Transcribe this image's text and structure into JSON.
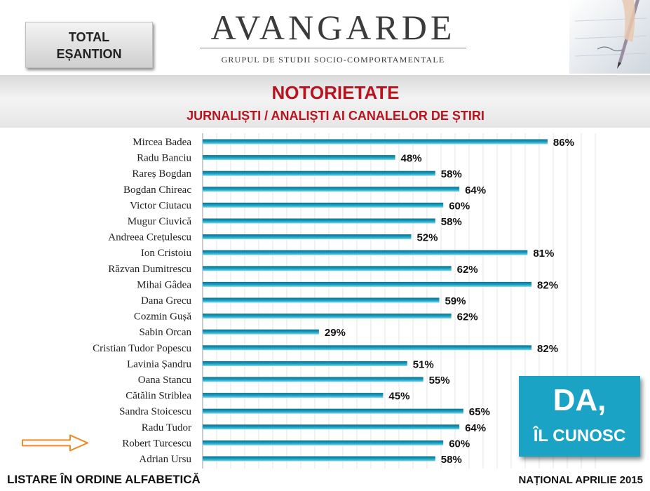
{
  "badge": {
    "line1": "TOTAL",
    "line2": "EȘANTION"
  },
  "logo": {
    "word": "AVANGARDE",
    "tagline": "GRUPUL DE STUDII SOCIO-COMPORTAMENTALE"
  },
  "heading": {
    "title": "NOTORIETATE",
    "subtitle": "JURNALIȘTI / ANALIȘTI AI CANALELOR DE ȘTIRI"
  },
  "callout": {
    "line1": "DA,",
    "line2": "ÎL CUNOSC"
  },
  "footer": {
    "left": "LISTARE ÎN ORDINE ALFABETICĂ",
    "right": "NAȚIONAL APRILIE 2015"
  },
  "colors": {
    "bar": "#1aa3c5",
    "bar_dark": "#0d6f8c",
    "title": "#b8141f",
    "arrow": "#f08a24"
  },
  "highlight_icon": "orange-arrow-icon",
  "chart_data": {
    "type": "bar",
    "orientation": "horizontal",
    "title": "NOTORIETATE",
    "subtitle": "JURNALIȘTI / ANALIȘTI AI CANALELOR DE ȘTIRI",
    "categories": [
      "Mircea Badea",
      "Radu Banciu",
      "Rareș Bogdan",
      "Bogdan Chireac",
      "Victor Ciutacu",
      "Mugur Ciuvică",
      "Andreea Crețulescu",
      "Ion Cristoiu",
      "Răzvan Dumitrescu",
      "Mihai Gâdea",
      "Dana Grecu",
      "Cozmin Gușă",
      "Sabin Orcan",
      "Cristian Tudor Popescu",
      "Lavinia Șandru",
      "Oana Stancu",
      "Cătălin Striblea",
      "Sandra Stoicescu",
      "Radu Tudor",
      "Robert Turcescu",
      "Adrian Ursu"
    ],
    "values": [
      86,
      48,
      58,
      64,
      60,
      58,
      52,
      81,
      62,
      82,
      59,
      62,
      29,
      82,
      51,
      55,
      45,
      65,
      64,
      60,
      58
    ],
    "value_labels": [
      "86%",
      "48%",
      "58%",
      "64%",
      "60%",
      "58%",
      "52%",
      "81%",
      "62%",
      "82%",
      "59%",
      "62%",
      "29%",
      "82%",
      "51%",
      "55%",
      "45%",
      "65%",
      "64%",
      "60%",
      "58%"
    ],
    "highlighted_category": "Robert Turcescu",
    "xlim": [
      0,
      100
    ],
    "unit": "%",
    "grid": true,
    "legend": "none"
  }
}
